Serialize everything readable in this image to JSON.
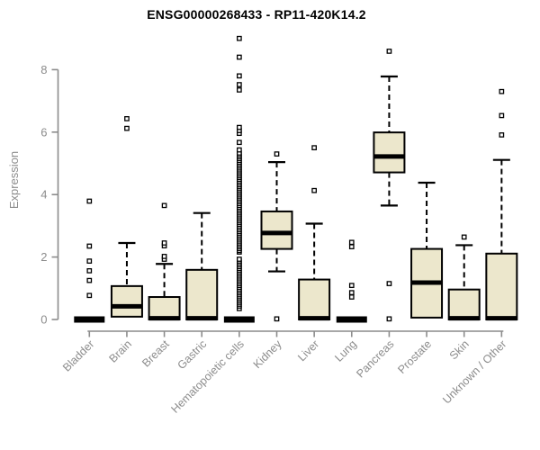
{
  "title": "ENSG00000268433 - RP11-420K14.2",
  "chart_data": {
    "type": "boxplot",
    "title": "ENSG00000268433 - RP11-420K14.2",
    "xlabel": "",
    "ylabel": "Expression",
    "ylim": [
      0,
      9.2
    ],
    "yticks": [
      0,
      2,
      4,
      6,
      8
    ],
    "grid": false,
    "legend": false,
    "categories": [
      "Bladder",
      "Brain",
      "Breast",
      "Gastric",
      "Hematopoietic cells",
      "Kidney",
      "Liver",
      "Lung",
      "Pancreas",
      "Prostate",
      "Skin",
      "Unknown / Other"
    ],
    "series": [
      {
        "category": "Bladder",
        "q1": 0,
        "median": 0,
        "q3": 0,
        "whisker_low": 0,
        "whisker_high": 0,
        "outliers": [
          0.77,
          1.25,
          1.56,
          1.87,
          2.35,
          3.79
        ]
      },
      {
        "category": "Brain",
        "q1": 0.09,
        "median": 0.42,
        "q3": 1.07,
        "whisker_low": 0.09,
        "whisker_high": 2.45,
        "outliers": [
          6.12,
          6.43
        ]
      },
      {
        "category": "Breast",
        "q1": 0,
        "median": 0.04,
        "q3": 0.72,
        "whisker_low": 0,
        "whisker_high": 1.78,
        "outliers": [
          1.93,
          2.02,
          2.36,
          2.45,
          3.65
        ]
      },
      {
        "category": "Gastric",
        "q1": 0,
        "median": 0.04,
        "q3": 1.59,
        "whisker_low": 0,
        "whisker_high": 3.41,
        "outliers": []
      },
      {
        "category": "Hematopoietic cells",
        "q1": 0,
        "median": 0,
        "q3": 0,
        "whisker_low": 0,
        "whisker_high": 0,
        "outliers": [
          0.35,
          0.43,
          0.49,
          0.55,
          0.61,
          0.67,
          0.73,
          0.79,
          0.85,
          0.91,
          0.97,
          1.03,
          1.09,
          1.15,
          1.21,
          1.27,
          1.33,
          1.39,
          1.45,
          1.51,
          1.57,
          1.63,
          1.69,
          1.75,
          1.81,
          1.87,
          1.93,
          2.16,
          2.21,
          2.27,
          2.33,
          2.39,
          2.45,
          2.51,
          2.57,
          2.63,
          2.69,
          2.75,
          2.81,
          2.87,
          2.93,
          2.99,
          3.05,
          3.11,
          3.17,
          3.23,
          3.29,
          3.35,
          3.41,
          3.47,
          3.53,
          3.59,
          3.65,
          3.71,
          3.77,
          3.83,
          3.89,
          3.95,
          4.01,
          4.07,
          4.13,
          4.19,
          4.25,
          4.31,
          4.37,
          4.43,
          4.49,
          4.55,
          4.61,
          4.67,
          4.73,
          4.79,
          4.85,
          4.91,
          4.97,
          5.03,
          5.09,
          5.15,
          5.21,
          5.27,
          5.33,
          5.43,
          5.67,
          5.96,
          6.05,
          6.15,
          7.35,
          7.52,
          7.8,
          8.4,
          9.0
        ]
      },
      {
        "category": "Kidney",
        "q1": 2.26,
        "median": 2.77,
        "q3": 3.46,
        "whisker_low": 1.54,
        "whisker_high": 5.04,
        "outliers": [
          0.02,
          5.3
        ]
      },
      {
        "category": "Liver",
        "q1": 0,
        "median": 0.04,
        "q3": 1.28,
        "whisker_low": 0,
        "whisker_high": 3.07,
        "outliers": [
          4.13,
          5.5
        ]
      },
      {
        "category": "Lung",
        "q1": 0,
        "median": 0,
        "q3": 0,
        "whisker_low": 0,
        "whisker_high": 0,
        "outliers": [
          0.72,
          0.86,
          1.09,
          2.33,
          2.47
        ]
      },
      {
        "category": "Pancreas",
        "q1": 4.71,
        "median": 5.22,
        "q3": 5.99,
        "whisker_low": 3.65,
        "whisker_high": 7.78,
        "outliers": [
          0.02,
          1.15,
          8.59
        ]
      },
      {
        "category": "Prostate",
        "q1": 0.06,
        "median": 1.18,
        "q3": 2.26,
        "whisker_low": 0.06,
        "whisker_high": 4.38,
        "outliers": []
      },
      {
        "category": "Skin",
        "q1": 0,
        "median": 0.04,
        "q3": 0.96,
        "whisker_low": 0,
        "whisker_high": 2.38,
        "outliers": [
          2.64
        ]
      },
      {
        "category": "Unknown / Other",
        "q1": 0,
        "median": 0.04,
        "q3": 2.11,
        "whisker_low": 0,
        "whisker_high": 5.11,
        "outliers": [
          5.91,
          6.53,
          7.3
        ]
      }
    ],
    "colors": {
      "box_fill": "#ece7cc",
      "box_stroke": "#000000",
      "median": "#000000",
      "axis": "#8c8c8c",
      "title": "#000000",
      "background": "#ffffff"
    }
  }
}
